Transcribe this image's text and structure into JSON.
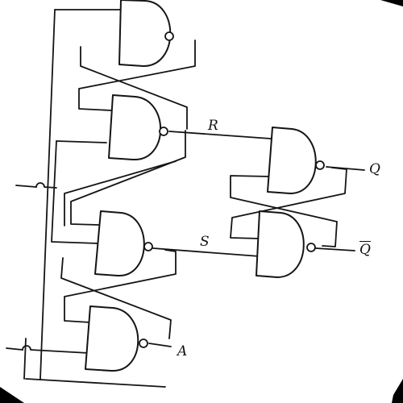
{
  "diagram": {
    "labels": {
      "r": "R",
      "s": "S",
      "q": "Q",
      "q_bar": "Q",
      "a": "A"
    }
  }
}
